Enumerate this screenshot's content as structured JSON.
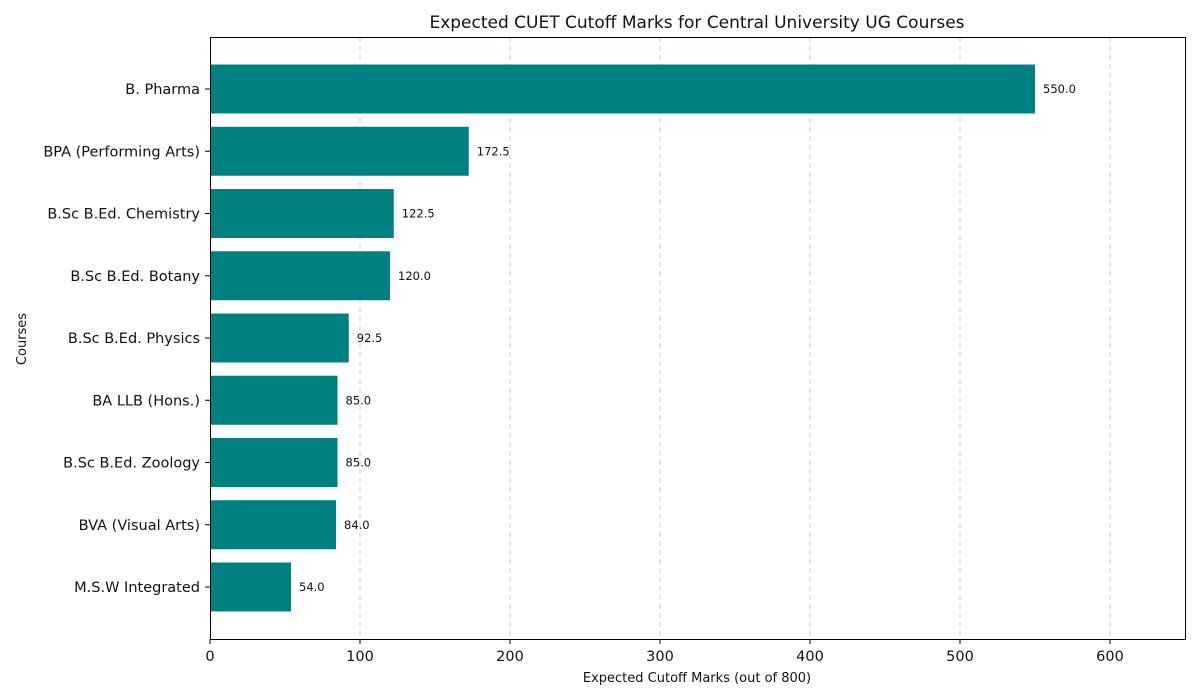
{
  "chart_data": {
    "type": "bar",
    "orientation": "horizontal",
    "title": "Expected CUET Cutoff Marks for Central University UG Courses",
    "xlabel": "Expected Cutoff Marks (out of 800)",
    "ylabel": "Courses",
    "categories": [
      "B. Pharma",
      "BPA (Performing Arts)",
      "B.Sc B.Ed. Chemistry",
      "B.Sc B.Ed. Botany",
      "B.Sc B.Ed. Physics",
      "BA LLB (Hons.)",
      "B.Sc B.Ed. Zoology",
      "BVA (Visual Arts)",
      "M.S.W Integrated"
    ],
    "values": [
      550.0,
      172.5,
      122.5,
      120.0,
      92.5,
      85.0,
      85.0,
      84.0,
      54.0
    ],
    "value_labels": [
      "550.0",
      "172.5",
      "122.5",
      "120.0",
      "92.5",
      "85.0",
      "85.0",
      "84.0",
      "54.0"
    ],
    "xlim": [
      0,
      650
    ],
    "xticks": [
      0,
      100,
      200,
      300,
      400,
      500,
      600
    ],
    "grid": "x-dashed",
    "bar_color": "#008080"
  }
}
